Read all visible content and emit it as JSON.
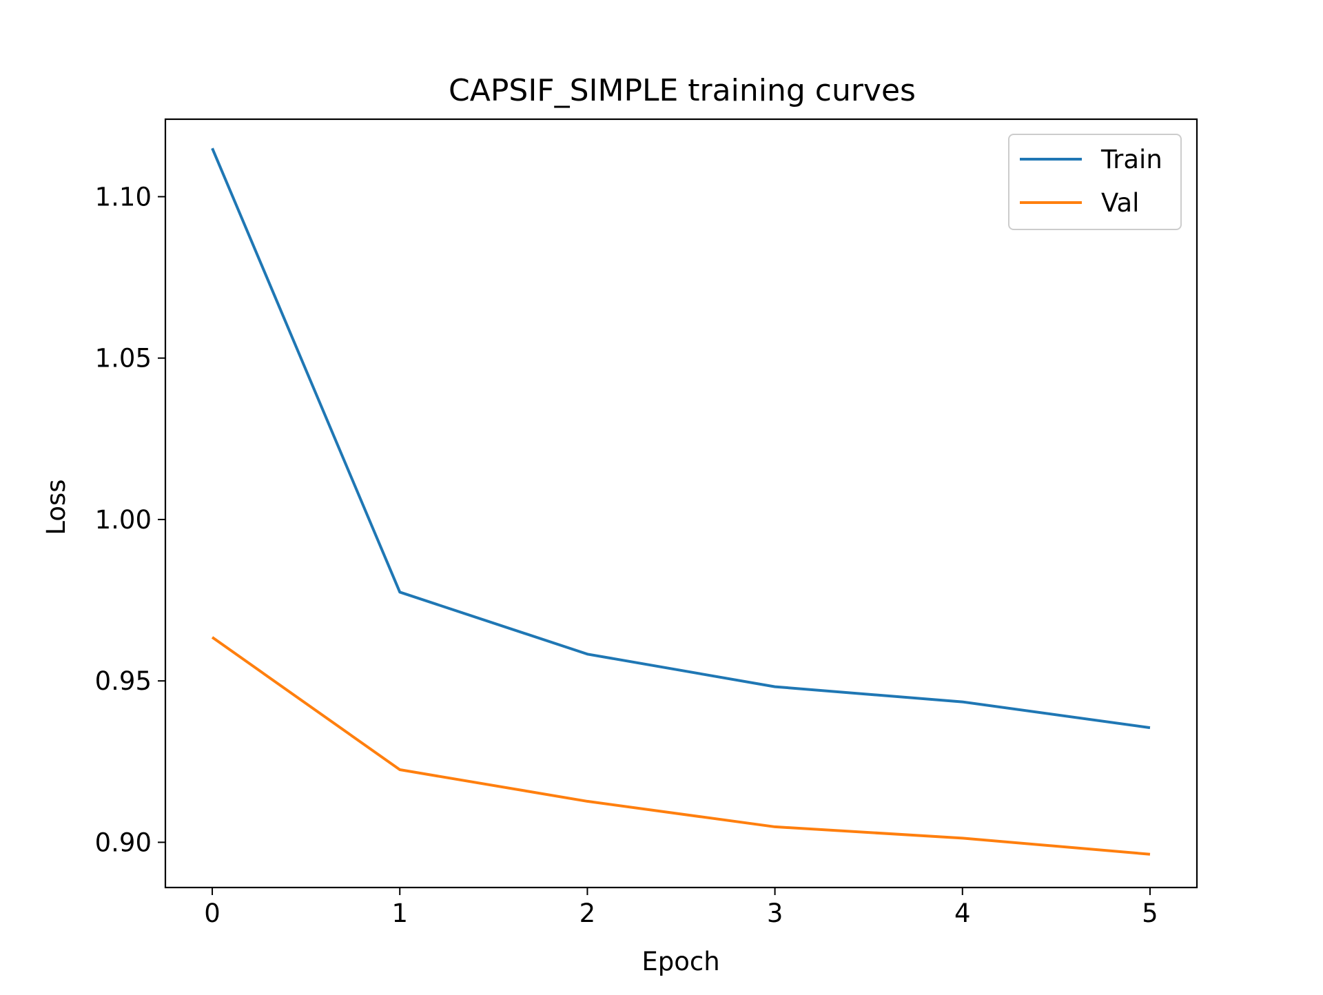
{
  "chart_data": {
    "type": "line",
    "title": "CAPSIF_SIMPLE training curves",
    "xlabel": "Epoch",
    "ylabel": "Loss",
    "x": [
      0,
      1,
      2,
      3,
      4,
      5
    ],
    "xticks": [
      "0",
      "1",
      "2",
      "3",
      "4",
      "5"
    ],
    "yticks": [
      "0.90",
      "0.95",
      "1.00",
      "1.05",
      "1.10"
    ],
    "ytick_values": [
      0.9,
      0.95,
      1.0,
      1.05,
      1.1
    ],
    "xlim": [
      -0.25,
      5.25
    ],
    "ylim": [
      0.886,
      1.124
    ],
    "grid": false,
    "legend_position": "top-right",
    "series": [
      {
        "name": "Train",
        "color": "#1f77b4",
        "values": [
          1.115,
          0.9775,
          0.9583,
          0.9482,
          0.9435,
          0.9355
        ]
      },
      {
        "name": "Val",
        "color": "#ff7f0e",
        "values": [
          0.9635,
          0.9225,
          0.9127,
          0.9048,
          0.9013,
          0.8963
        ]
      }
    ]
  }
}
